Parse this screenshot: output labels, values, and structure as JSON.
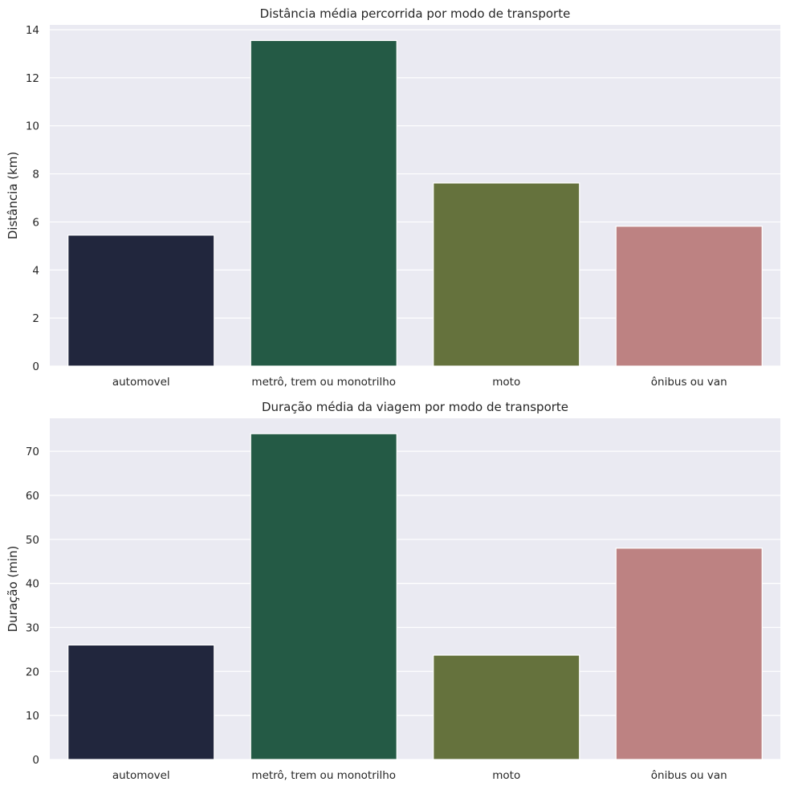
{
  "chart_data": [
    {
      "type": "bar",
      "title": "Distância média percorrida por modo de transporte",
      "xlabel": "",
      "ylabel": "Distância (km)",
      "categories": [
        "automovel",
        "metrô, trem ou monotrilho",
        "moto",
        "ônibus ou van"
      ],
      "values": [
        5.45,
        13.55,
        7.62,
        5.82
      ],
      "colors": [
        "#21263d",
        "#245a45",
        "#65723d",
        "#bd8282"
      ],
      "ylim": [
        0,
        14.2
      ],
      "yticks": [
        0,
        2,
        4,
        6,
        8,
        10,
        12,
        14
      ],
      "grid": true
    },
    {
      "type": "bar",
      "title": "Duração média da viagem por modo de transporte",
      "xlabel": "",
      "ylabel": "Duração (min)",
      "categories": [
        "automovel",
        "metrô, trem ou monotrilho",
        "moto",
        "ônibus ou van"
      ],
      "values": [
        26,
        74,
        23.7,
        48
      ],
      "colors": [
        "#21263d",
        "#245a45",
        "#65723d",
        "#bd8282"
      ],
      "ylim": [
        0,
        77.5
      ],
      "yticks": [
        0,
        10,
        20,
        30,
        40,
        50,
        60,
        70
      ],
      "grid": true
    }
  ]
}
